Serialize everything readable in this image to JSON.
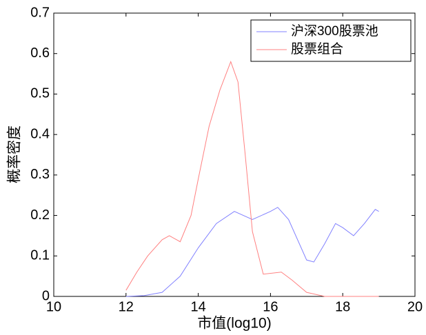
{
  "chart_data": {
    "type": "line",
    "xlabel": "市值(log10)",
    "ylabel": "概率密度",
    "xlim": [
      10,
      20
    ],
    "xticks": [
      10,
      12,
      14,
      16,
      18,
      20
    ],
    "ylim": [
      0,
      0.7
    ],
    "yticks": [
      0,
      0.1,
      0.2,
      0.3,
      0.4,
      0.5,
      0.6,
      0.7
    ],
    "legend": "upper right",
    "series": [
      {
        "name": "沪深300股票池",
        "color": "#8080ff",
        "x": [
          12,
          12.5,
          13,
          13.5,
          14,
          14.5,
          15,
          15.5,
          16,
          16.2,
          16.5,
          17,
          17.2,
          17.5,
          17.8,
          18,
          18.3,
          18.6,
          18.9,
          19
        ],
        "values": [
          0,
          0.002,
          0.01,
          0.05,
          0.12,
          0.18,
          0.21,
          0.19,
          0.21,
          0.22,
          0.19,
          0.09,
          0.085,
          0.13,
          0.18,
          0.17,
          0.15,
          0.18,
          0.215,
          0.21
        ]
      },
      {
        "name": "股票组合",
        "color": "#ff8080",
        "x": [
          12,
          12.3,
          12.6,
          13,
          13.2,
          13.5,
          13.8,
          14,
          14.3,
          14.6,
          14.9,
          15.1,
          15.3,
          15.5,
          15.8,
          16.3,
          16.6,
          17,
          17.5,
          19
        ],
        "values": [
          0.015,
          0.06,
          0.1,
          0.14,
          0.15,
          0.135,
          0.2,
          0.29,
          0.42,
          0.51,
          0.58,
          0.53,
          0.35,
          0.16,
          0.055,
          0.06,
          0.04,
          0.01,
          0,
          0
        ]
      }
    ]
  }
}
